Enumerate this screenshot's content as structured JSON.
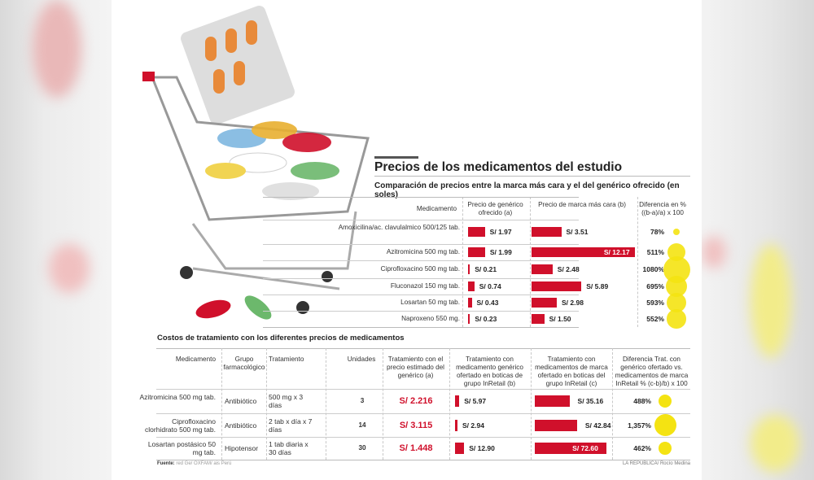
{
  "title": "Precios de los medicamentos del estudio",
  "colors": {
    "bar": "#d0102b",
    "bubble": "#f4e312"
  },
  "chart_data": [
    {
      "type": "table",
      "title": "Comparación de precios entre la marca más cara y el del genérico ofrecido (en soles)",
      "headers": [
        "Medicamento",
        "Precio de genérico ofrecido (a)",
        "Precio de marca más cara (b)",
        "Diferencia en % ((b-a)/a) x 100"
      ],
      "rows": [
        {
          "med": "Amoxicilina/ac. clavulalmico 500/125 tab.",
          "a": 1.97,
          "a_label": "S/ 1.97",
          "b": 3.51,
          "b_label": "S/ 3.51",
          "diff": 78,
          "diff_label": "78%"
        },
        {
          "med": "Azitromicina 500 mg tab.",
          "a": 1.99,
          "a_label": "S/ 1.99",
          "b": 12.17,
          "b_label": "S/ 12.17",
          "diff": 511,
          "diff_label": "511%"
        },
        {
          "med": "Ciprofloxacino 500 mg tab.",
          "a": 0.21,
          "a_label": "S/ 0.21",
          "b": 2.48,
          "b_label": "S/ 2.48",
          "diff": 1080,
          "diff_label": "1080%"
        },
        {
          "med": "Fluconazol 150 mg tab.",
          "a": 0.74,
          "a_label": "S/ 0.74",
          "b": 5.89,
          "b_label": "S/ 5.89",
          "diff": 695,
          "diff_label": "695%"
        },
        {
          "med": "Losartan 50 mg tab.",
          "a": 0.43,
          "a_label": "S/ 0.43",
          "b": 2.98,
          "b_label": "S/ 2.98",
          "diff": 593,
          "diff_label": "593%"
        },
        {
          "med": "Naproxeno 550 mg.",
          "a": 0.23,
          "a_label": "S/ 0.23",
          "b": 1.5,
          "b_label": "S/ 1.50",
          "diff": 552,
          "diff_label": "552%"
        }
      ]
    },
    {
      "type": "table",
      "title": "Costos de tratamiento con los diferentes precios de medicamentos",
      "headers": [
        "Medicamento",
        "Grupo farmacológico",
        "Tratamiento",
        "Unidades",
        "Tratamiento con el precio estimado del genérico (a)",
        "Tratamiento con medicamento genérico ofertado en boticas de grupo InRetail (b)",
        "Tratamiento con medicamentos de marca ofertado en boticas del grupo InRetail (c)",
        "Diferencia Trat. con genérico ofertado vs. medicamentos de marca InRetail % (c-b)/b) x 100"
      ],
      "rows": [
        {
          "med": "Azitromicina 500 mg tab.",
          "grupo": "Antibiótico",
          "trat": "500 mg x 3 días",
          "units": "3",
          "a_label": "S/ 2.216",
          "b": 5.97,
          "b_label": "S/ 5.97",
          "c": 35.16,
          "c_label": "S/ 35.16",
          "diff": 488,
          "diff_label": "488%"
        },
        {
          "med": "Ciprofloxacino clorhidrato 500 mg tab.",
          "grupo": "Antibiótico",
          "trat": "2 tab x día x 7 días",
          "units": "14",
          "a_label": "S/ 3.115",
          "b": 2.94,
          "b_label": "S/ 2.94",
          "c": 42.84,
          "c_label": "S/ 42.84",
          "diff": 1357,
          "diff_label": "1,357%"
        },
        {
          "med": "Losartan postásico 50 mg tab.",
          "grupo": "Hipotensor",
          "trat": "1 tab diaria x 30 días",
          "units": "30",
          "a_label": "S/ 1.448",
          "b": 12.9,
          "b_label": "S/ 12.90",
          "c": 72.6,
          "c_label": "S/ 72.60",
          "diff": 462,
          "diff_label": "462%"
        }
      ]
    }
  ],
  "footer": {
    "source_label": "Fuente:",
    "source": "red Ge/ OXFAM/ ais Perú",
    "credit": "LA REPUBLICA/ Rocío Medina"
  }
}
